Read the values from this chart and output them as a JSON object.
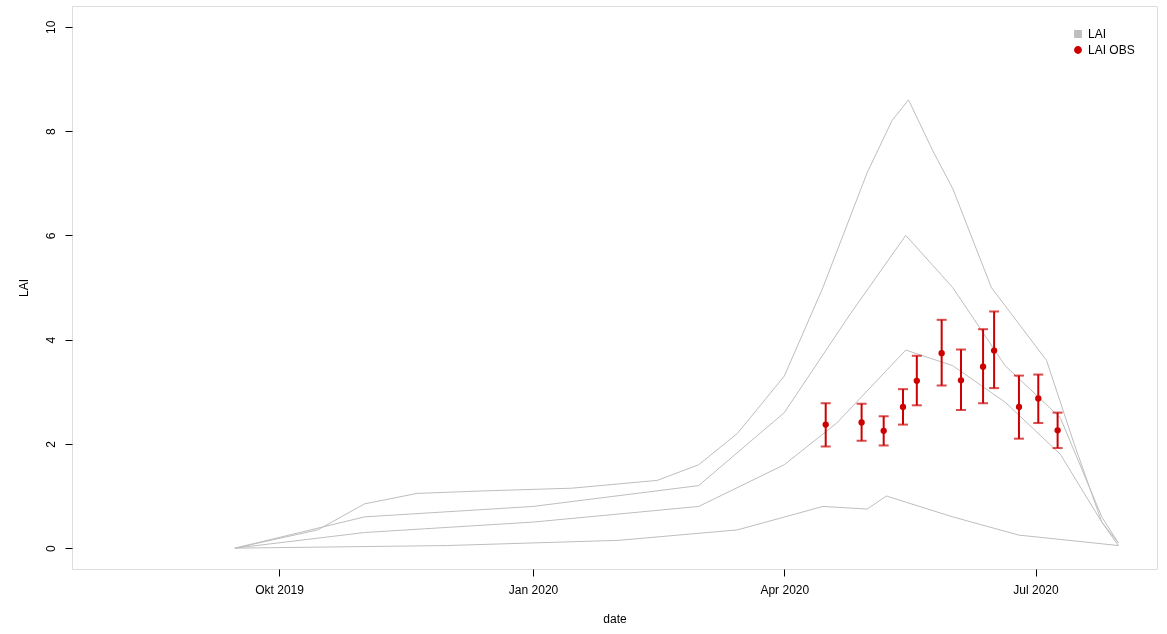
{
  "chart_data": {
    "type": "line",
    "xlabel": "date",
    "ylabel": "LAI",
    "xlim": [
      "2019-07-18",
      "2020-08-14"
    ],
    "ylim": [
      -0.4,
      10.4
    ],
    "xticks": [
      {
        "value": "2019-10-01",
        "label": "Okt 2019"
      },
      {
        "value": "2020-01-01",
        "label": "Jan 2020"
      },
      {
        "value": "2020-04-01",
        "label": "Apr 2020"
      },
      {
        "value": "2020-07-01",
        "label": "Jul 2020"
      }
    ],
    "yticks": [
      0,
      2,
      4,
      6,
      8,
      10
    ],
    "grid": false,
    "legend": "top right",
    "series": [
      {
        "name": "LAI",
        "color": "#bebebe",
        "line_style": "solid",
        "x": [
          "2019-09-15",
          "2019-10-15",
          "2019-11-01",
          "2019-11-20",
          "2019-12-15",
          "2020-01-15",
          "2020-02-15",
          "2020-03-01",
          "2020-03-15",
          "2020-04-01",
          "2020-04-15",
          "2020-05-01",
          "2020-05-10",
          "2020-05-16",
          "2020-05-25",
          "2020-06-01",
          "2020-06-15",
          "2020-06-25",
          "2020-07-05",
          "2020-07-15",
          "2020-07-25",
          "2020-07-31"
        ],
        "values": [
          0,
          0.35,
          0.85,
          1.05,
          1.1,
          1.15,
          1.3,
          1.6,
          2.2,
          3.3,
          5.0,
          7.2,
          8.2,
          8.6,
          7.6,
          6.9,
          5.0,
          4.3,
          3.6,
          2.0,
          0.5,
          0.1
        ]
      },
      {
        "color": "#bebebe",
        "line_style": "solid",
        "x": [
          "2019-09-15",
          "2019-12-01",
          "2020-02-01",
          "2020-03-15",
          "2020-04-15",
          "2020-05-01",
          "2020-05-08",
          "2020-06-01",
          "2020-06-25",
          "2020-07-31"
        ],
        "values": [
          0,
          0.05,
          0.15,
          0.35,
          0.8,
          0.75,
          1.0,
          0.6,
          0.25,
          0.05
        ]
      },
      {
        "color": "#bebebe",
        "line_style": "solid",
        "x": [
          "2019-09-15",
          "2019-11-01",
          "2020-01-01",
          "2020-03-01",
          "2020-04-01",
          "2020-04-20",
          "2020-05-15",
          "2020-06-01",
          "2020-06-20",
          "2020-07-10",
          "2020-07-25",
          "2020-07-31"
        ],
        "values": [
          0,
          0.3,
          0.5,
          0.8,
          1.6,
          2.4,
          3.8,
          3.5,
          2.8,
          1.8,
          0.5,
          0.05
        ]
      },
      {
        "color": "#bebebe",
        "line_style": "solid",
        "x": [
          "2019-09-15",
          "2019-11-01",
          "2020-01-01",
          "2020-03-01",
          "2020-04-01",
          "2020-04-25",
          "2020-05-15",
          "2020-06-01",
          "2020-06-20",
          "2020-07-10",
          "2020-07-25",
          "2020-07-31"
        ],
        "values": [
          0,
          0.6,
          0.8,
          1.2,
          2.6,
          4.5,
          6.0,
          5.0,
          3.5,
          2.5,
          0.6,
          0.1
        ]
      },
      {
        "name": "LAI OBS",
        "type": "scatter",
        "color": "#cc0000",
        "marker": "circle",
        "x": [
          "2020-04-16",
          "2020-04-29",
          "2020-05-07",
          "2020-05-14",
          "2020-05-19",
          "2020-05-28",
          "2020-06-04",
          "2020-06-12",
          "2020-06-16",
          "2020-06-25",
          "2020-07-02",
          "2020-07-09"
        ],
        "values": [
          2.37,
          2.41,
          2.25,
          2.71,
          3.21,
          3.74,
          3.22,
          3.48,
          3.79,
          2.71,
          2.87,
          2.26
        ],
        "errors": [
          [
            1.95,
            2.78
          ],
          [
            2.06,
            2.77
          ],
          [
            1.97,
            2.53
          ],
          [
            2.37,
            3.05
          ],
          [
            2.74,
            3.69
          ],
          [
            3.12,
            4.38
          ],
          [
            2.65,
            3.81
          ],
          [
            2.78,
            4.2
          ],
          [
            3.07,
            4.54
          ],
          [
            2.1,
            3.31
          ],
          [
            2.4,
            3.33
          ],
          [
            1.92,
            2.6
          ]
        ]
      }
    ]
  }
}
